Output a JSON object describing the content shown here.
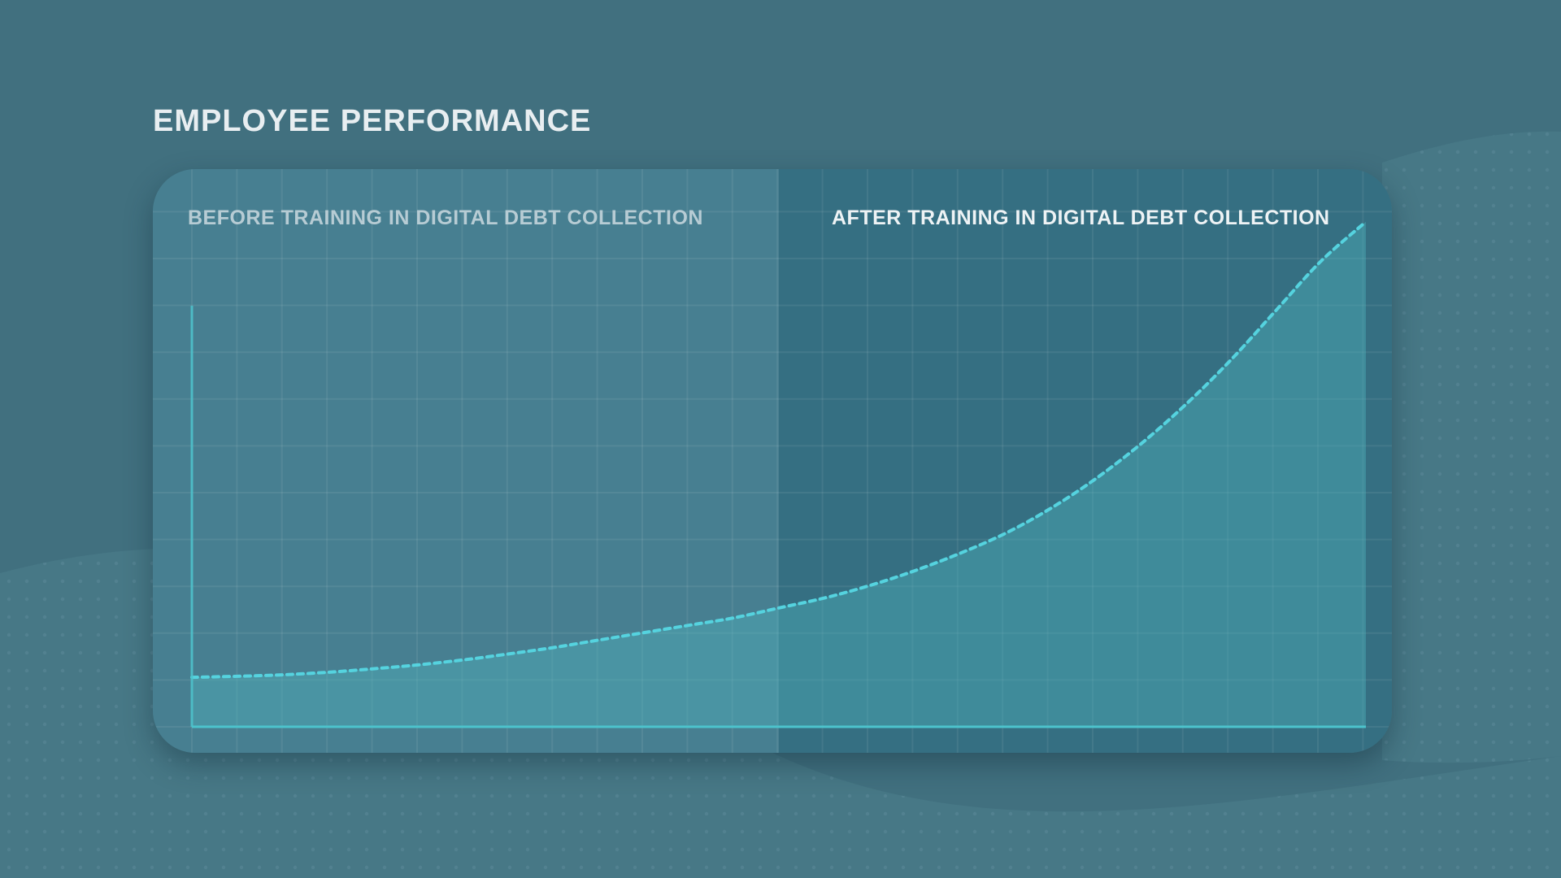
{
  "page": {
    "title": "EMPLOYEE PERFORMANCE",
    "colors": {
      "background": "#41707f",
      "panel_before": "#477f91",
      "panel_after": "#356f82",
      "curve": "#55d3df",
      "area_fill": "#4fb3bd",
      "axis": "#4cc3cc",
      "title_text": "#e8eef1"
    }
  },
  "chart_data": {
    "type": "area",
    "title": "EMPLOYEE PERFORMANCE",
    "xlabel": "",
    "ylabel": "",
    "sections": [
      {
        "name": "before",
        "label": "BEFORE TRAINING IN DIGITAL DEBT COLLECTION"
      },
      {
        "name": "after",
        "label": "AFTER TRAINING IN DIGITAL DEBT COLLECTION"
      }
    ],
    "xlim": [
      0,
      26
    ],
    "ylim": [
      0,
      10
    ],
    "split_x": 13,
    "grid": true,
    "line_style": "dashed",
    "series": [
      {
        "x": [
          0,
          1,
          2,
          3,
          4,
          5,
          6,
          7,
          8,
          9,
          10,
          11,
          12,
          13,
          14,
          15,
          16,
          17,
          18,
          19,
          20,
          21,
          22,
          23,
          24,
          25,
          26
        ],
        "values": [
          1.0,
          1.02,
          1.05,
          1.1,
          1.17,
          1.25,
          1.35,
          1.47,
          1.6,
          1.75,
          1.9,
          2.05,
          2.2,
          2.4,
          2.6,
          2.85,
          3.15,
          3.5,
          3.9,
          4.4,
          5.0,
          5.7,
          6.5,
          7.4,
          8.4,
          9.4,
          10.2
        ]
      }
    ]
  }
}
